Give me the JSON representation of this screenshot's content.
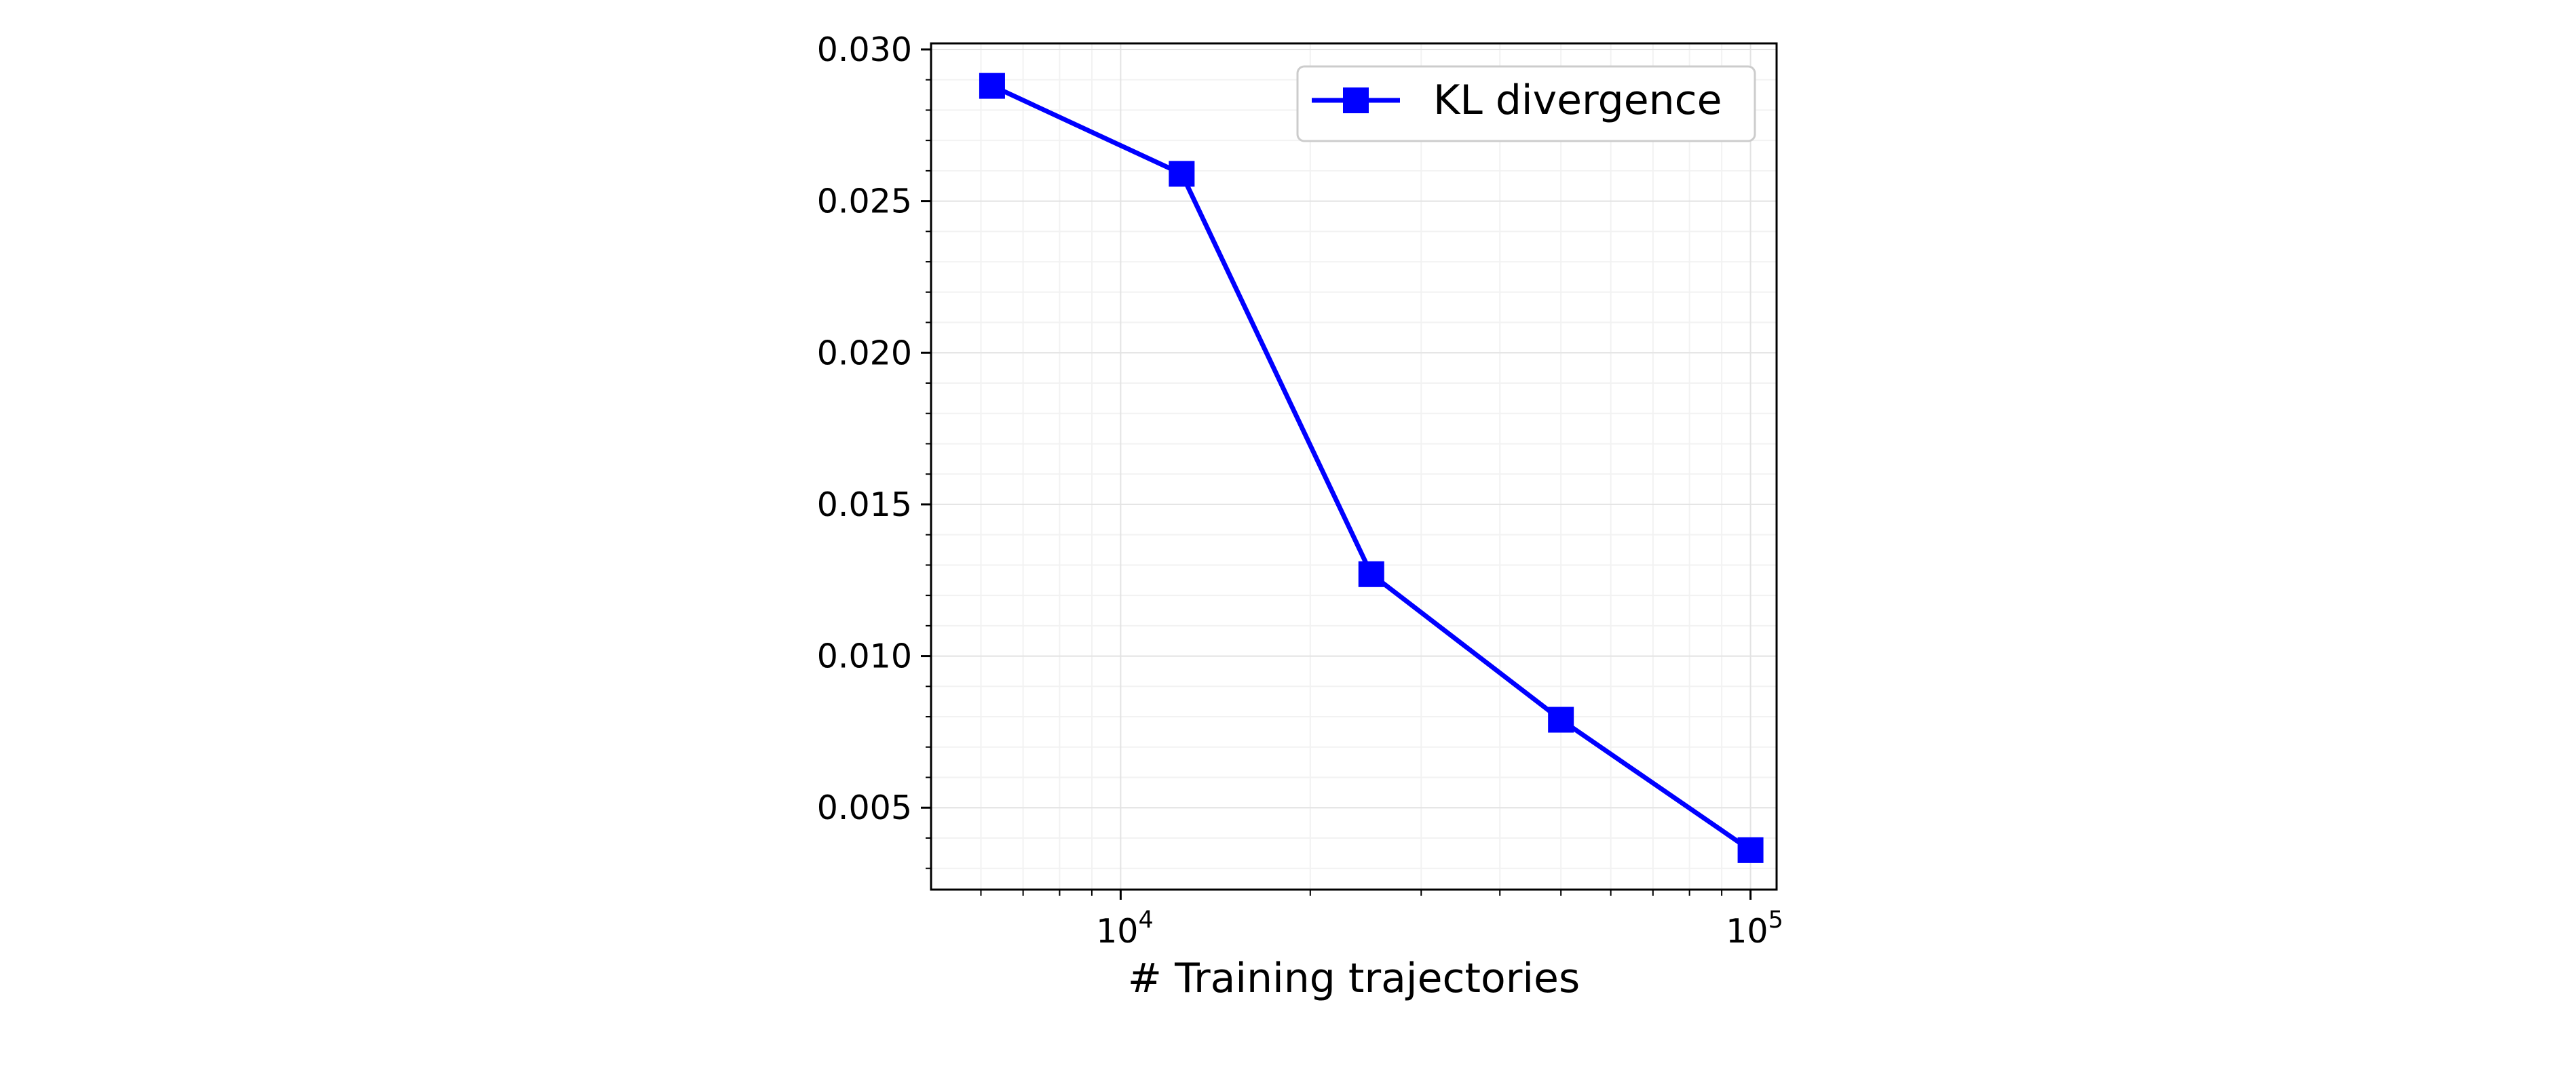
{
  "chart_data": {
    "type": "line",
    "title": "",
    "xlabel": "# Training trajectories",
    "ylabel": "",
    "xscale": "log",
    "xlim": [
      5000,
      110000
    ],
    "ylim": [
      0.0023,
      0.0302
    ],
    "grid": true,
    "legend_position": "top-right",
    "x_ticks": [
      {
        "value": 10000,
        "base": "10",
        "exp": "4"
      },
      {
        "value": 100000,
        "base": "10",
        "exp": "5"
      }
    ],
    "y_ticks": [
      {
        "value": 0.005,
        "label": "0.005"
      },
      {
        "value": 0.01,
        "label": "0.010"
      },
      {
        "value": 0.015,
        "label": "0.015"
      },
      {
        "value": 0.02,
        "label": "0.020"
      },
      {
        "value": 0.025,
        "label": "0.025"
      },
      {
        "value": 0.03,
        "label": "0.030"
      }
    ],
    "series": [
      {
        "name": "KL divergence",
        "color": "#0000ff",
        "marker": "square",
        "x": [
          6250,
          12500,
          25000,
          50000,
          100000
        ],
        "y": [
          0.0288,
          0.0259,
          0.0127,
          0.0079,
          0.0036
        ]
      }
    ]
  }
}
